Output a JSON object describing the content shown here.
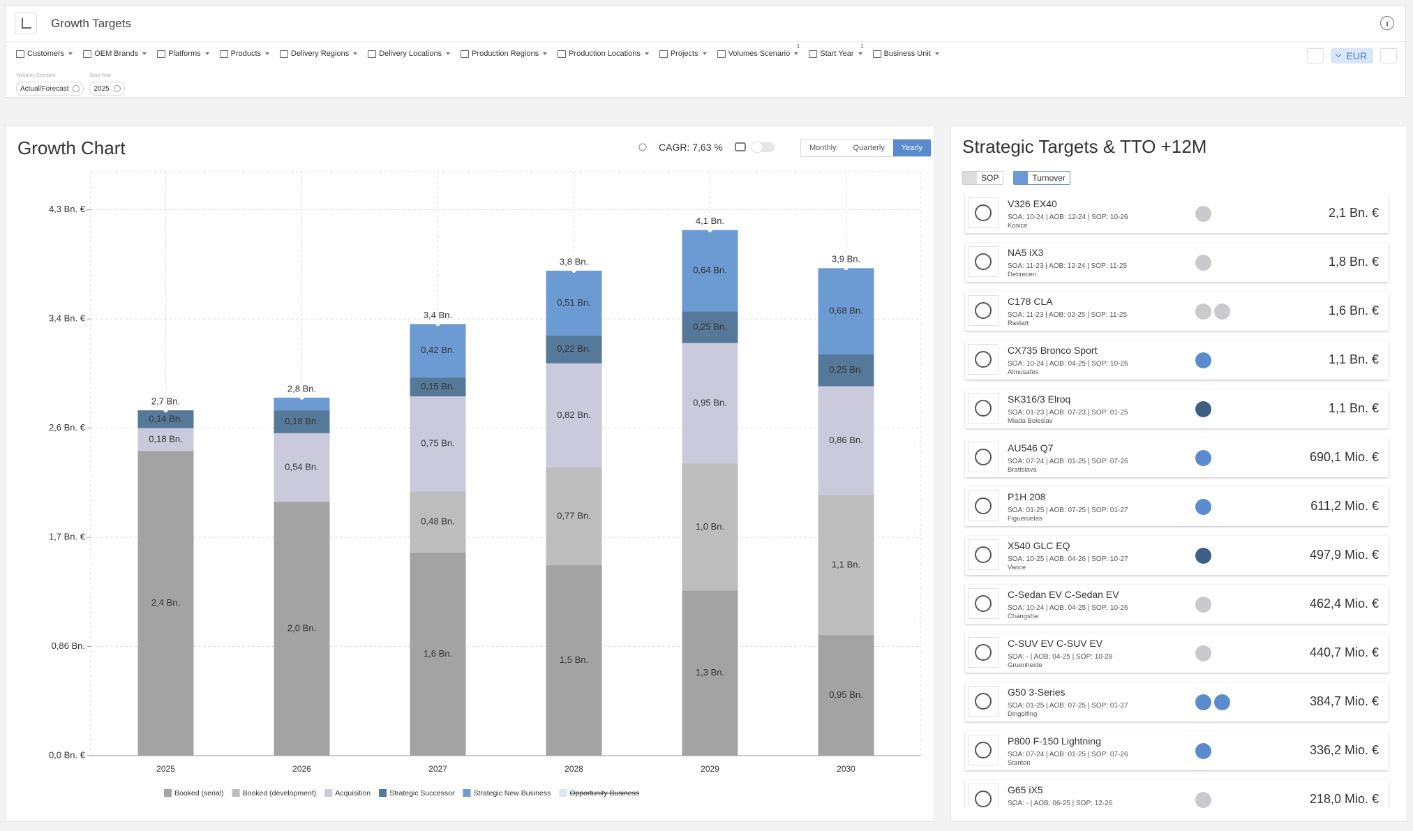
{
  "header": {
    "title": "Growth Targets"
  },
  "filters": [
    {
      "label": "Customers"
    },
    {
      "label": "OEM Brands"
    },
    {
      "label": "Platforms"
    },
    {
      "label": "Products"
    },
    {
      "label": "Delivery Regions"
    },
    {
      "label": "Delivery Locations"
    },
    {
      "label": "Production Regions"
    },
    {
      "label": "Production Locations"
    },
    {
      "label": "Projects"
    },
    {
      "label": "Volumes Scenario",
      "badge": 1
    },
    {
      "label": "Start Year",
      "badge": 1
    },
    {
      "label": "Business Unit"
    }
  ],
  "active_filters": [
    {
      "label": "Volumes Scenario",
      "value": "Actual/Forecast"
    },
    {
      "label": "Start Year",
      "value": "2025"
    }
  ],
  "currency": "EUR",
  "chart_data": {
    "type": "bar",
    "stacked": true,
    "title": "Growth Chart",
    "cagr": "CAGR: 7,63 %",
    "periods": [
      "Monthly",
      "Quarterly",
      "Yearly"
    ],
    "active_period": 2,
    "categories": [
      "2025",
      "2026",
      "2027",
      "2028",
      "2029",
      "2030"
    ],
    "series": [
      {
        "name": "Booked (serial)",
        "color": "#a3a3a3",
        "values": [
          2.4,
          2.0,
          1.6,
          1.5,
          1.3,
          0.95
        ],
        "value_labels": [
          "2,4 Bn.",
          "2,0 Bn.",
          "1,6 Bn.",
          "1,5 Bn.",
          "1,3 Bn.",
          "0,95 Bn."
        ]
      },
      {
        "name": "Booked (development)",
        "color": "#bdbdbd",
        "values": [
          null,
          null,
          0.48,
          0.77,
          1.0,
          1.1
        ],
        "value_labels": [
          null,
          null,
          "0,48 Bn.",
          "0,77 Bn.",
          "1,0 Bn.",
          "1,1 Bn."
        ]
      },
      {
        "name": "Acquisition",
        "color": "#cbcadd",
        "values": [
          0.18,
          0.54,
          0.75,
          0.82,
          0.95,
          0.86
        ],
        "value_labels": [
          "0,18 Bn.",
          "0,54 Bn.",
          "0,75 Bn.",
          "0,82 Bn.",
          "0,95 Bn.",
          "0,86 Bn."
        ]
      },
      {
        "name": "Strategic Successor",
        "color": "#56799a",
        "values": [
          0.14,
          0.18,
          0.15,
          0.22,
          0.25,
          0.25
        ],
        "value_labels": [
          "0,14 Bn.",
          "0,18 Bn.",
          "0,15 Bn.",
          "0,22 Bn.",
          "0,25 Bn.",
          "0,25 Bn."
        ]
      },
      {
        "name": "Strategic New Business",
        "color": "#6c9bd3",
        "values": [
          null,
          0.1,
          0.42,
          0.51,
          0.64,
          0.68
        ],
        "value_labels": [
          null,
          null,
          "0,42 Bn.",
          "0,51 Bn.",
          "0,64 Bn.",
          "0,68 Bn."
        ]
      },
      {
        "name": "Opportunity Business",
        "color": "#d8e5f3",
        "hidden": true,
        "values": [
          null,
          null,
          null,
          null,
          null,
          null
        ]
      }
    ],
    "total_labels": [
      "2,7 Bn.",
      "2,8 Bn.",
      "3,4 Bn.",
      "3,8 Bn.",
      "4,1 Bn.",
      "3,9 Bn."
    ],
    "ylim": [
      0,
      4.6
    ],
    "yticks": [
      {
        "value": 0,
        "label": "0,0 Bn. €"
      },
      {
        "value": 0.86,
        "label": "0,86 Bn."
      },
      {
        "value": 1.72,
        "label": "1,7 Bn. €"
      },
      {
        "value": 2.58,
        "label": "2,6 Bn. €"
      },
      {
        "value": 3.44,
        "label": "3,4 Bn. €"
      },
      {
        "value": 4.3,
        "label": "4,3 Bn. €"
      }
    ],
    "grid": true
  },
  "targets": {
    "title": "Strategic Targets & TTO +12M",
    "sort": [
      "SOP",
      "Turnover"
    ],
    "active_sort": 1,
    "rows": [
      {
        "name": "V326 EX40",
        "dates": "SOA: 10-24 | AOB: 12-24 | SOP: 10-26",
        "location": "Kosice",
        "value": "2,1 Bn. €",
        "icons": [
          "#c9c9ce"
        ]
      },
      {
        "name": "NA5 iX3",
        "dates": "SOA: 11-23 | AOB: 12-24 | SOP: 11-25",
        "location": "Debrecen",
        "value": "1,8 Bn. €",
        "icons": [
          "#c9c9ce"
        ]
      },
      {
        "name": "C178 CLA",
        "dates": "SOA: 11-23 | AOB: 02-25 | SOP: 11-25",
        "location": "Rastatt",
        "value": "1,6 Bn. €",
        "icons": [
          "#c9c9ce",
          "#c9c9ce"
        ]
      },
      {
        "name": "CX735 Bronco Sport",
        "dates": "SOA: 10-24 | AOB: 04-25 | SOP: 10-26",
        "location": "Almusafes",
        "value": "1,1 Bn. €",
        "icons": [
          "#5b8bcf"
        ]
      },
      {
        "name": "SK316/3 Elroq",
        "dates": "SOA: 01-23 | AOB: 07-23 | SOP: 01-25",
        "location": "Mlada Boleslav",
        "value": "1,1 Bn. €",
        "icons": [
          "#3f5f82"
        ]
      },
      {
        "name": "AU546 Q7",
        "dates": "SOA: 07-24 | AOB: 01-25 | SOP: 07-26",
        "location": "Bratislava",
        "value": "690,1 Mio. €",
        "icons": [
          "#5b8bcf"
        ]
      },
      {
        "name": "P1H 208",
        "dates": "SOA: 01-25 | AOB: 07-25 | SOP: 01-27",
        "location": "Figueruelas",
        "value": "611,2 Mio. €",
        "icons": [
          "#5b8bcf"
        ]
      },
      {
        "name": "X540 GLC EQ",
        "dates": "SOA: 10-25 | AOB: 04-26 | SOP: 10-27",
        "location": "Vance",
        "value": "497,9 Mio. €",
        "icons": [
          "#3f5f82"
        ]
      },
      {
        "name": "C-Sedan EV C-Sedan EV",
        "dates": "SOA: 10-24 | AOB: 04-25 | SOP: 10-26",
        "location": "Changsha",
        "value": "462,4 Mio. €",
        "icons": [
          "#c9c9ce"
        ]
      },
      {
        "name": "C-SUV EV C-SUV EV",
        "dates": "SOA: - | AOB: 04-25 | SOP: 10-28",
        "location": "Gruenheide",
        "value": "440,7 Mio. €",
        "icons": [
          "#c9c9ce"
        ]
      },
      {
        "name": "G50 3-Series",
        "dates": "SOA: 01-25 | AOB: 07-25 | SOP: 01-27",
        "location": "Dingolfing",
        "value": "384,7 Mio. €",
        "icons": [
          "#5b8bcf",
          "#5b8bcf"
        ]
      },
      {
        "name": "P800 F-150 Lightning",
        "dates": "SOA: 07-24 | AOB: 01-25 | SOP: 07-26",
        "location": "Stanton",
        "value": "336,2 Mio. €",
        "icons": [
          "#5b8bcf"
        ]
      },
      {
        "name": "G65 iX5",
        "dates": "SOA: - | AOB: 06-25 | SOP: 12-26",
        "value": "218,0 Mio. €",
        "icons": [
          "#c9c9ce"
        ]
      }
    ]
  }
}
